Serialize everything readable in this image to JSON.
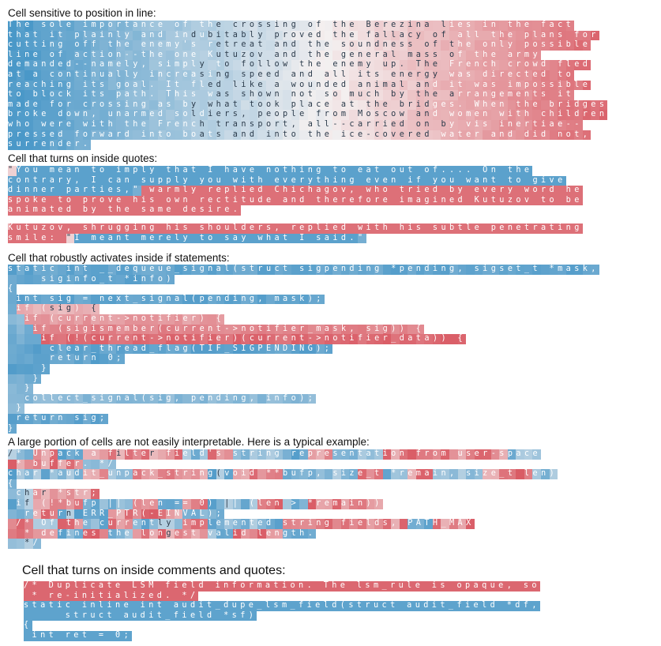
{
  "sections": [
    {
      "heading": "Cell sensitive to position in line:",
      "mode": "position",
      "lines": [
        "The sole importance of the crossing of the Berezina lies in the fact",
        "that it plainly and indubitably proved the fallacy of all the plans for",
        "cutting off the enemy's retreat and the soundness of the only possible",
        "line of action--the one Kutuzov and the general mass of the army",
        "demanded--namely, simply to follow the enemy up. The French crowd fled",
        "at a continually increasing speed and all its energy was directed to",
        "reaching its goal. It fled like a wounded animal and it was impossible",
        "to block its path. This was shown not so much by the arrangements it",
        "made for crossing as by what took place at the bridges. When the bridges",
        "broke down, unarmed soldiers, people from Moscow and women with children",
        "who were with the French transport, all--carried on by vis inertiae--",
        "pressed forward into boats and into the ice-covered water and did not,",
        "surrender."
      ]
    },
    {
      "heading": "Cell that turns on inside quotes:",
      "mode": "quotes",
      "lines": [
        "\"You mean to imply that I have nothing to eat out of.... On the",
        "contrary, I can supply you with everything even if you want to give",
        "dinner parties,\" warmly replied Chichagov, who tried by every word he",
        "spoke to prove his own rectitude and therefore imagined Kutuzov to be",
        "animated by the same desire.",
        "",
        "Kutuzov, shrugging his shoulders, replied with his subtle penetrating",
        "smile: \"I meant merely to say what I said.\""
      ]
    },
    {
      "heading": "Cell that robustly activates inside if statements:",
      "mode": "ifs",
      "lines": [
        "static int __dequeue_signal(struct sigpending *pending, sigset_t *mask,",
        "    siginfo_t *info)",
        "{",
        " int sig = next_signal(pending, mask);",
        " if (sig) {",
        "  if (current->notifier) {",
        "   if (sigismember(current->notifier_mask, sig)) {",
        "    if (!(current->notifier)(current->notifier_data)) {",
        "     clear_thread_flag(TIF_SIGPENDING);",
        "     return 0;",
        "    }",
        "   }",
        "  }",
        "  collect_signal(sig, pending, info);",
        " }",
        " return sig;",
        "}"
      ]
    },
    {
      "heading": "A large portion of cells are not easily interpretable. Here is a typical example:",
      "mode": "mixed",
      "lines": [
        "/* Unpack a filter field's string representation from user-space",
        " * buffer. */",
        "char *audit_unpack_string(void **bufp, size_t *remain, size_t len)",
        "{",
        " char *str;",
        " if (!*bufp || (len == 0) || (len > *remain))",
        "  return ERR_PTR(-EINVAL);",
        " /* Of the currently implemented string fields, PATH_MAX",
        "  * defines the longest valid length.",
        "  */"
      ]
    },
    {
      "heading": "Cell that turns on inside comments and quotes:",
      "mode": "comments",
      "lines": [
        "/* Duplicate LSM field information. The lsm_rule is opaque, so",
        " * re-initialized. */",
        "static inline int audit_dupe_lsm_field(struct audit_field *df,",
        "     struct audit_field *sf)",
        "{",
        " int ret = 0;"
      ]
    }
  ],
  "colors": {
    "positive": "#d8545e",
    "negative": "#4a98c8",
    "neutral": "#f4f0f0"
  }
}
